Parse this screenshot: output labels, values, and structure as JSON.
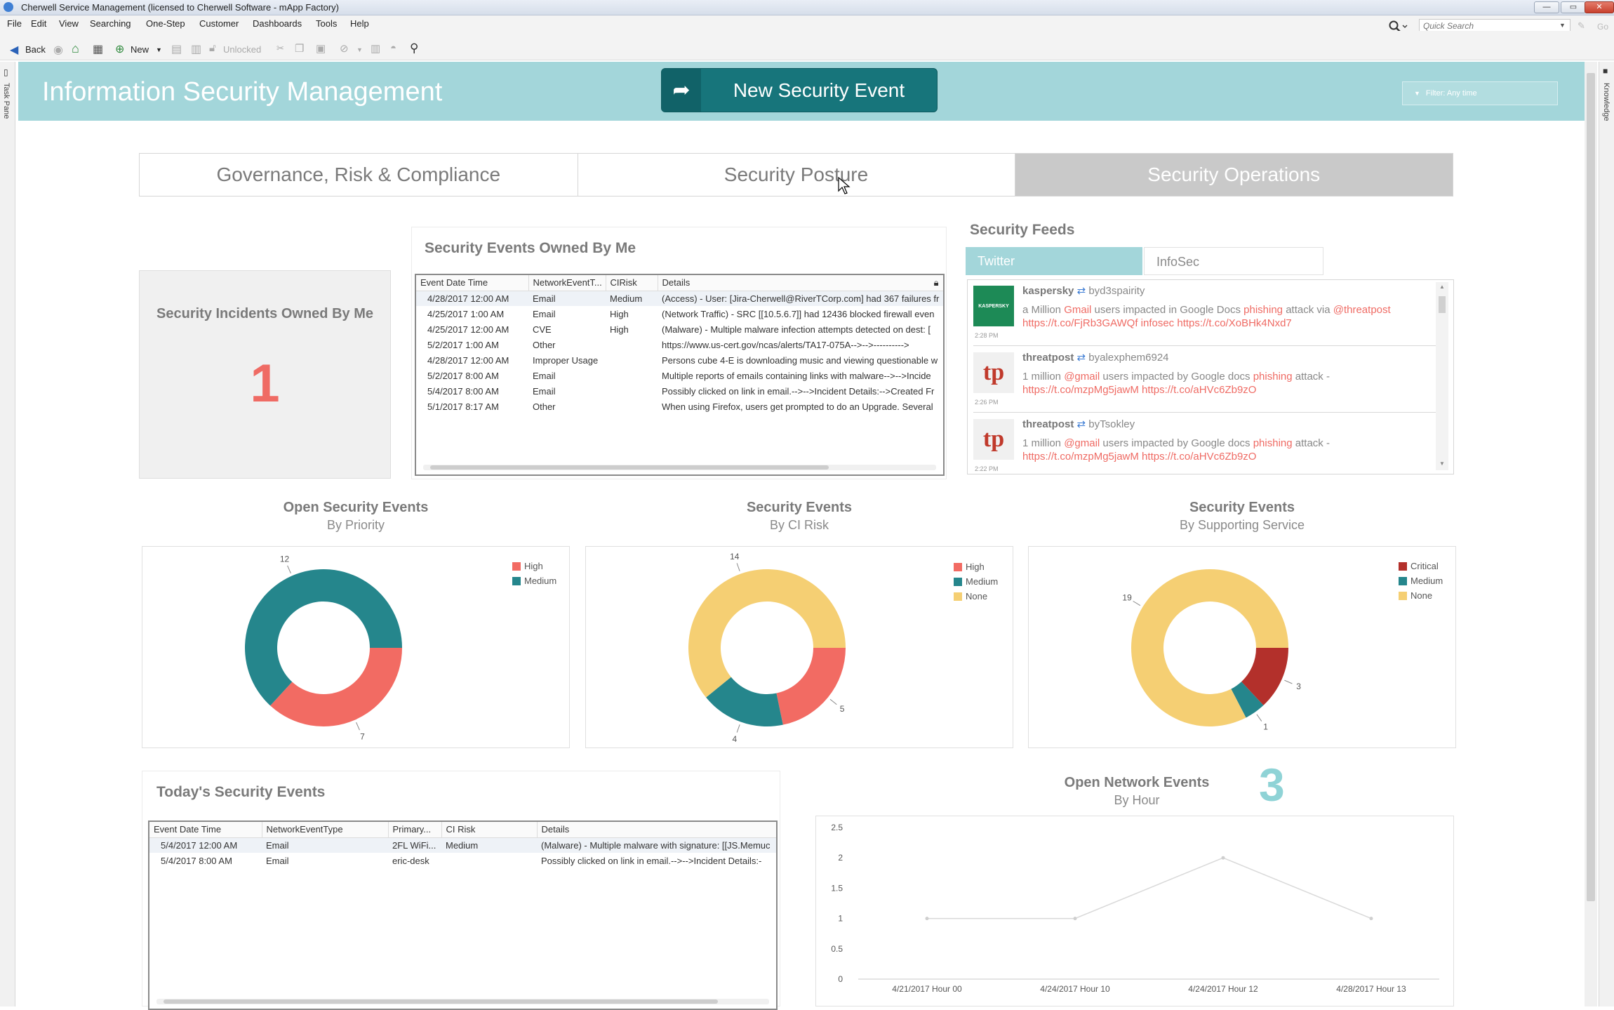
{
  "window": {
    "title": "Cherwell Service Management (licensed to Cherwell Software - mApp Factory)",
    "buttons": [
      "—",
      "▭",
      "✕"
    ]
  },
  "menu": [
    "File",
    "Edit",
    "View",
    "Searching",
    "One-Step",
    "Customer",
    "Dashboards",
    "Tools",
    "Help"
  ],
  "search": {
    "placeholder": "Quick Search",
    "go": "Go"
  },
  "toolbar": {
    "back": "Back",
    "new": "New",
    "unlocked": "Unlocked"
  },
  "sidepanes": {
    "left": "Task Pane",
    "right": "Knowledge"
  },
  "header": {
    "title": "Information Security Management",
    "new_event": "New Security Event",
    "filter": "Filter: Any time"
  },
  "tabs": [
    "Governance, Risk & Compliance",
    "Security Posture",
    "Security Operations"
  ],
  "incidents": {
    "title": "Security Incidents Owned By Me",
    "count": "1"
  },
  "owned_events": {
    "title": "Security Events Owned By Me",
    "columns": [
      "Event Date Time",
      "NetworkEventT...",
      "CIRisk",
      "Details"
    ],
    "rows": [
      [
        "4/28/2017  12:00 AM",
        "Email",
        "Medium",
        "(Access) - User: [Jira-Cherwell@RiverTCorp.com] had 367 failures fr"
      ],
      [
        "4/25/2017  1:00 AM",
        "Email",
        "High",
        "(Network Traffic) - SRC [[10.5.6.7]] had 12436 blocked firewall even"
      ],
      [
        "4/25/2017  12:00 AM",
        "CVE",
        "High",
        "(Malware) - Multiple malware infection attempts detected on dest: ["
      ],
      [
        "5/2/2017  1:00 AM",
        "Other",
        "",
        "https://www.us-cert.gov/ncas/alerts/TA17-075A-->-->---------->"
      ],
      [
        "4/28/2017  12:00 AM",
        "Improper Usage",
        "",
        "Persons cube 4-E is downloading music and viewing questionable w"
      ],
      [
        "5/2/2017  8:00 AM",
        "Email",
        "",
        "Multiple reports of emails containing links with malware-->-->Incide"
      ],
      [
        "5/4/2017  8:00 AM",
        "Email",
        "",
        "Possibly clicked on link in email.-->-->Incident Details:-->Created Fr"
      ],
      [
        "5/1/2017  8:17 AM",
        "Other",
        "",
        "When using Firefox, users get prompted to do an Upgrade. Several"
      ]
    ]
  },
  "feeds": {
    "title": "Security Feeds",
    "tabs": [
      "Twitter",
      "InfoSec"
    ],
    "items": [
      {
        "avatar": "KASPERSKY",
        "account": "kaspersky",
        "by": "byd3spairity",
        "time": "2:28 PM",
        "plain1": "a Million ",
        "red1": "Gmail",
        "plain2": " users impacted in Google Docs ",
        "red2": "phishing",
        "plain3": " attack via ",
        "red3": "@threatpost https://t.co/FjRb3GAWQf infosec https://t.co/XoBHk4Nxd7"
      },
      {
        "avatar": "tp",
        "account": "threatpost",
        "by": "byalexphem6924",
        "time": "2:26 PM",
        "plain1": "1 million ",
        "red1": "@gmail",
        "plain2": " users impacted by Google docs ",
        "red2": "phishing",
        "plain3": " attack - ",
        "red3": "https://t.co/mzpMg5jawM https://t.co/aHVc6Zb9zO"
      },
      {
        "avatar": "tp",
        "account": "threatpost",
        "by": "byTsokley",
        "time": "2:22 PM",
        "plain1": "1 million ",
        "red1": "@gmail",
        "plain2": " users impacted by Google docs ",
        "red2": "phishing",
        "plain3": " attack - ",
        "red3": "https://t.co/mzpMg5jawM https://t.co/aHVc6Zb9zO"
      }
    ]
  },
  "colors": {
    "high": "#f26b63",
    "medium": "#25868c",
    "none": "#f5cf73",
    "critical": "#b3302b",
    "accent": "#a3d6da",
    "button": "#17757b"
  },
  "donut1": {
    "title": "Open Security Events",
    "subtitle": "By Priority",
    "legend": [
      "High",
      "Medium"
    ],
    "chart_data": {
      "type": "pie",
      "donut": true,
      "categories": [
        "High",
        "Medium"
      ],
      "values": [
        7,
        12
      ],
      "labels": [
        "7",
        "12"
      ]
    }
  },
  "donut2": {
    "title": "Security Events",
    "subtitle": "By CI Risk",
    "legend": [
      "High",
      "Medium",
      "None"
    ],
    "chart_data": {
      "type": "pie",
      "donut": true,
      "categories": [
        "High",
        "Medium",
        "None"
      ],
      "values": [
        5,
        4,
        14
      ],
      "labels": [
        "5",
        "4",
        "14"
      ]
    }
  },
  "donut3": {
    "title": "Security Events",
    "subtitle": "By Supporting Service",
    "legend": [
      "Critical",
      "Medium",
      "None"
    ],
    "chart_data": {
      "type": "pie",
      "donut": true,
      "categories": [
        "Critical",
        "Medium",
        "None"
      ],
      "values": [
        3,
        1,
        19
      ],
      "labels": [
        "3",
        "1",
        "19"
      ]
    }
  },
  "today_events": {
    "title": "Today's Security Events",
    "columns": [
      "Event Date Time",
      "NetworkEventType",
      "Primary...",
      "CI Risk",
      "Details"
    ],
    "rows": [
      [
        "5/4/2017  12:00 AM",
        "Email",
        "2FL WiFi...",
        "Medium",
        "(Malware) - Multiple malware with signature: [[JS.Memuc"
      ],
      [
        "5/4/2017  8:00 AM",
        "Email",
        "eric-desk",
        "",
        "Possibly clicked on link in email.-->-->Incident Details:-"
      ]
    ]
  },
  "network_events": {
    "title": "Open Network Events",
    "subtitle": "By Hour",
    "count": "3",
    "chart_data": {
      "type": "line",
      "categories": [
        "4/21/2017 Hour 00",
        "4/24/2017 Hour 10",
        "4/24/2017 Hour 12",
        "4/28/2017 Hour 13"
      ],
      "values": [
        1,
        1,
        2,
        1
      ],
      "ylim": [
        0,
        2.5
      ],
      "yticks": [
        "0",
        "0.5",
        "1",
        "1.5",
        "2",
        "2.5"
      ],
      "grid": false
    }
  }
}
